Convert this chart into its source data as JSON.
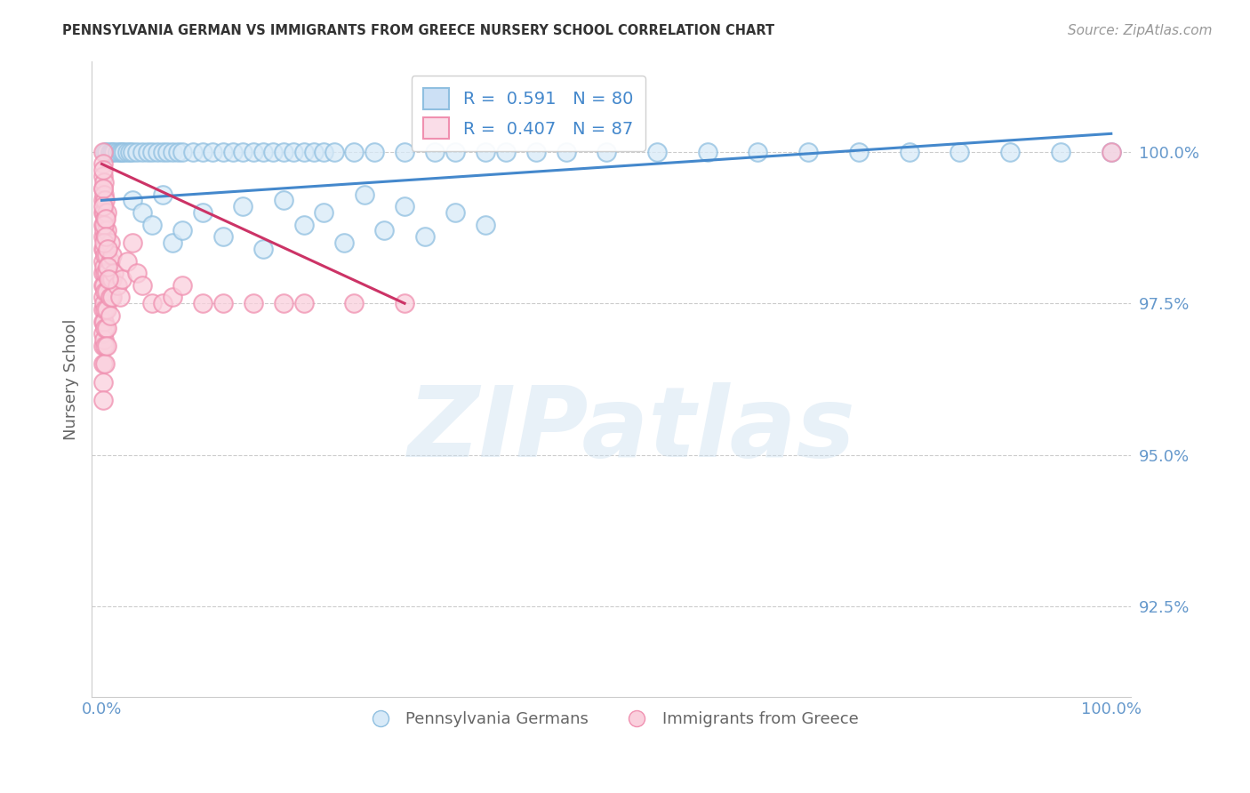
{
  "title": "PENNSYLVANIA GERMAN VS IMMIGRANTS FROM GREECE NURSERY SCHOOL CORRELATION CHART",
  "source": "Source: ZipAtlas.com",
  "ylabel": "Nursery School",
  "xlim": [
    -1.0,
    102.0
  ],
  "ylim": [
    91.0,
    101.5
  ],
  "blue_R": 0.591,
  "blue_N": 80,
  "pink_R": 0.407,
  "pink_N": 87,
  "blue_color": "#8fbfe0",
  "pink_color": "#f090b0",
  "blue_line_color": "#4488cc",
  "pink_line_color": "#cc3366",
  "legend_label_blue": "Pennsylvania Germans",
  "legend_label_pink": "Immigrants from Greece",
  "watermark": "ZIPatlas",
  "grid_color": "#cccccc",
  "background_color": "#ffffff",
  "title_color": "#333333",
  "axis_label_color": "#666666",
  "tick_color": "#6699cc",
  "source_color": "#999999",
  "ytick_vals": [
    92.5,
    95.0,
    97.5,
    100.0
  ],
  "ytick_labels": [
    "92.5%",
    "95.0%",
    "97.5%",
    "100.0%"
  ],
  "xtick_vals": [
    0,
    20,
    40,
    60,
    80,
    100
  ],
  "xtick_labels": [
    "0.0%",
    "",
    "",
    "",
    "",
    "100.0%"
  ],
  "blue_x": [
    0.3,
    0.5,
    0.8,
    1.0,
    1.2,
    1.5,
    1.8,
    2.0,
    2.2,
    2.5,
    2.8,
    3.0,
    3.5,
    4.0,
    4.5,
    5.0,
    5.5,
    6.0,
    6.5,
    7.0,
    7.5,
    8.0,
    9.0,
    10.0,
    11.0,
    12.0,
    13.0,
    14.0,
    15.0,
    16.0,
    17.0,
    18.0,
    19.0,
    20.0,
    21.0,
    22.0,
    23.0,
    25.0,
    27.0,
    30.0,
    33.0,
    35.0,
    38.0,
    40.0,
    43.0,
    46.0,
    50.0,
    55.0,
    60.0,
    65.0,
    70.0,
    75.0,
    80.0,
    85.0,
    90.0,
    95.0,
    100.0,
    3.0,
    4.0,
    5.0,
    6.0,
    7.0,
    8.0,
    10.0,
    12.0,
    14.0,
    16.0,
    18.0,
    20.0,
    22.0,
    24.0,
    26.0,
    28.0,
    30.0,
    32.0,
    35.0,
    38.0
  ],
  "blue_y": [
    100.0,
    100.0,
    100.0,
    100.0,
    100.0,
    100.0,
    100.0,
    100.0,
    100.0,
    100.0,
    100.0,
    100.0,
    100.0,
    100.0,
    100.0,
    100.0,
    100.0,
    100.0,
    100.0,
    100.0,
    100.0,
    100.0,
    100.0,
    100.0,
    100.0,
    100.0,
    100.0,
    100.0,
    100.0,
    100.0,
    100.0,
    100.0,
    100.0,
    100.0,
    100.0,
    100.0,
    100.0,
    100.0,
    100.0,
    100.0,
    100.0,
    100.0,
    100.0,
    100.0,
    100.0,
    100.0,
    100.0,
    100.0,
    100.0,
    100.0,
    100.0,
    100.0,
    100.0,
    100.0,
    100.0,
    100.0,
    100.0,
    99.2,
    99.0,
    98.8,
    99.3,
    98.5,
    98.7,
    99.0,
    98.6,
    99.1,
    98.4,
    99.2,
    98.8,
    99.0,
    98.5,
    99.3,
    98.7,
    99.1,
    98.6,
    99.0,
    98.8
  ],
  "pink_x": [
    0.1,
    0.1,
    0.1,
    0.1,
    0.1,
    0.1,
    0.1,
    0.1,
    0.1,
    0.1,
    0.1,
    0.1,
    0.1,
    0.1,
    0.1,
    0.1,
    0.1,
    0.1,
    0.1,
    0.1,
    0.2,
    0.2,
    0.2,
    0.2,
    0.2,
    0.2,
    0.2,
    0.2,
    0.2,
    0.2,
    0.3,
    0.3,
    0.3,
    0.3,
    0.3,
    0.3,
    0.3,
    0.3,
    0.3,
    0.3,
    0.5,
    0.5,
    0.5,
    0.5,
    0.5,
    0.5,
    0.5,
    0.5,
    0.8,
    0.8,
    0.8,
    0.8,
    0.8,
    1.0,
    1.0,
    1.0,
    1.2,
    1.5,
    1.8,
    2.0,
    2.5,
    3.0,
    3.5,
    4.0,
    5.0,
    6.0,
    7.0,
    8.0,
    10.0,
    12.0,
    15.0,
    18.0,
    20.0,
    25.0,
    30.0,
    100.0,
    0.15,
    0.15,
    0.15,
    0.25,
    0.25,
    0.4,
    0.4,
    0.6,
    0.6,
    0.7
  ],
  "pink_y": [
    100.0,
    99.8,
    99.6,
    99.4,
    99.2,
    99.0,
    98.8,
    98.6,
    98.4,
    98.2,
    98.0,
    97.8,
    97.6,
    97.4,
    97.2,
    97.0,
    96.8,
    96.5,
    96.2,
    95.9,
    99.5,
    99.3,
    99.0,
    98.7,
    98.4,
    98.1,
    97.8,
    97.5,
    97.2,
    96.9,
    99.2,
    98.9,
    98.6,
    98.3,
    98.0,
    97.7,
    97.4,
    97.1,
    96.8,
    96.5,
    99.0,
    98.7,
    98.3,
    98.0,
    97.7,
    97.4,
    97.1,
    96.8,
    98.5,
    98.2,
    97.9,
    97.6,
    97.3,
    98.3,
    97.9,
    97.6,
    98.0,
    97.8,
    97.6,
    97.9,
    98.2,
    98.5,
    98.0,
    97.8,
    97.5,
    97.5,
    97.6,
    97.8,
    97.5,
    97.5,
    97.5,
    97.5,
    97.5,
    97.5,
    97.5,
    100.0,
    99.7,
    99.4,
    99.1,
    98.8,
    98.5,
    98.9,
    98.6,
    98.4,
    98.1,
    97.9
  ],
  "blue_trend_x": [
    0,
    100
  ],
  "blue_trend_y": [
    99.2,
    100.3
  ],
  "pink_trend_x": [
    0,
    30
  ],
  "pink_trend_y": [
    99.8,
    97.5
  ]
}
